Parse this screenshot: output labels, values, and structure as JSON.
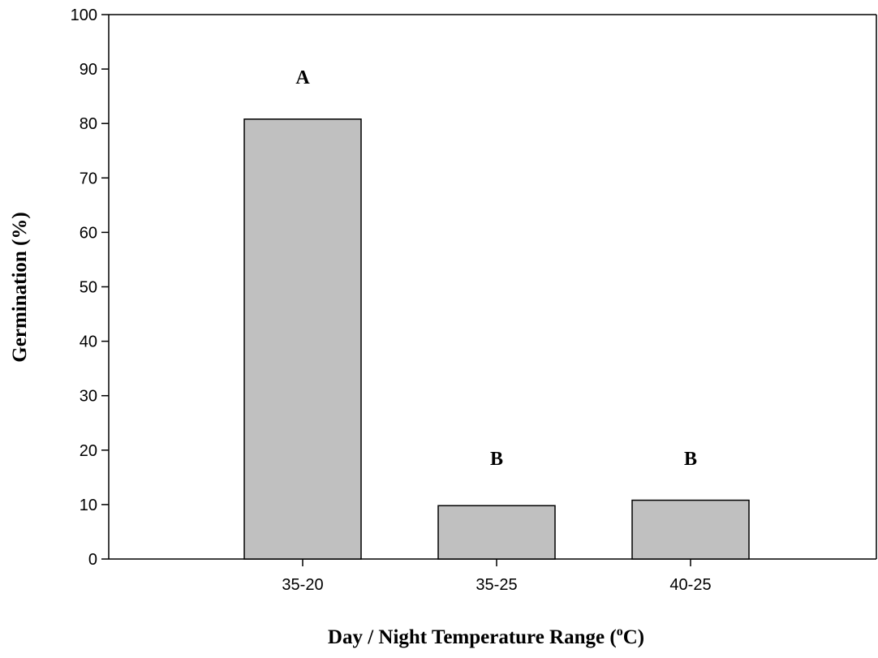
{
  "chart_data": {
    "type": "bar",
    "categories": [
      "35-20",
      "35-25",
      "40-25"
    ],
    "values": [
      80.8,
      9.8,
      10.8
    ],
    "annotations": [
      "A",
      "B",
      "B"
    ],
    "annotation_y": [
      90,
      20,
      20
    ],
    "xlabel_main": "Day / Night Temperature Range (",
    "xlabel_sup": "o",
    "xlabel_end": "C)",
    "ylabel": "Germination (%)",
    "ylim": [
      0,
      100
    ],
    "yticks": [
      "0",
      "10",
      "20",
      "30",
      "40",
      "50",
      "60",
      "70",
      "80",
      "90",
      "100"
    ],
    "bar_color": "#c0c0c0",
    "grid": false
  }
}
